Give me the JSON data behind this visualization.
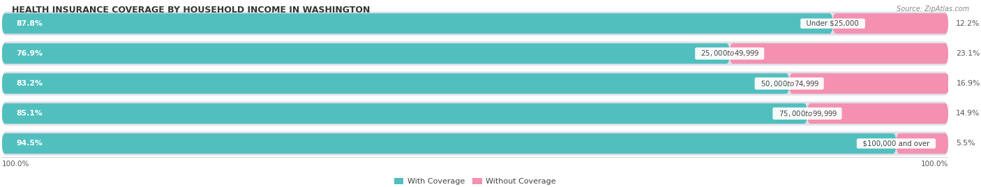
{
  "title": "HEALTH INSURANCE COVERAGE BY HOUSEHOLD INCOME IN WASHINGTON",
  "source": "Source: ZipAtlas.com",
  "categories": [
    "Under $25,000",
    "$25,000 to $49,999",
    "$50,000 to $74,999",
    "$75,000 to $99,999",
    "$100,000 and over"
  ],
  "with_coverage": [
    87.8,
    76.9,
    83.2,
    85.1,
    94.5
  ],
  "without_coverage": [
    12.2,
    23.1,
    16.9,
    14.9,
    5.5
  ],
  "color_coverage": "#52bfbf",
  "color_no_coverage": "#f490b0",
  "bar_bg_color": "#e0e0e8",
  "title_fontsize": 9.0,
  "label_fontsize": 7.8,
  "legend_fontsize": 8.0,
  "source_fontsize": 7.0,
  "axis_label_fontsize": 7.5
}
